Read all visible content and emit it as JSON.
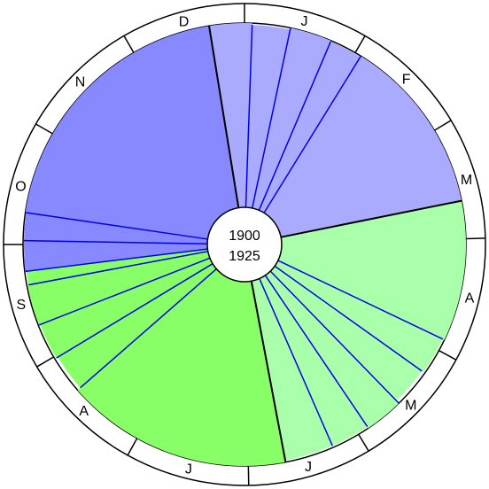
{
  "center": {
    "line1": "1900",
    "line2": "1925"
  },
  "months": [
    "J",
    "F",
    "M",
    "A",
    "M",
    "J",
    "J",
    "A",
    "S",
    "O",
    "N",
    "D"
  ]
}
